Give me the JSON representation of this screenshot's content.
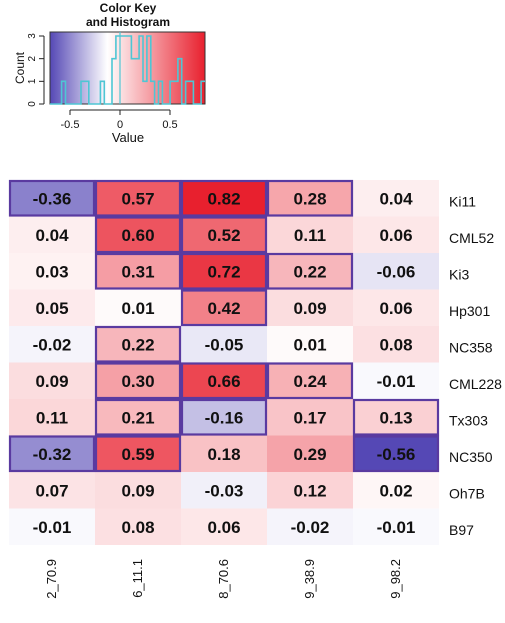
{
  "chart_data": [
    {
      "type": "histogram",
      "title": "Color Key\nand Histogram",
      "title_lines": [
        "Color Key",
        "and Histogram"
      ],
      "xlabel": "Value",
      "ylabel": "Count",
      "xticks": [
        "-0.5",
        "0",
        "0.5"
      ],
      "yticks": [
        "0",
        "1",
        "2",
        "3"
      ],
      "xlim": [
        -0.7,
        0.85
      ],
      "ylim": [
        0,
        3
      ],
      "palette": {
        "low": "#5548b5",
        "mid": "#ffffff",
        "high": "#e8202e"
      }
    },
    {
      "type": "heatmap",
      "rows": [
        "Ki11",
        "CML52",
        "Ki3",
        "Hp301",
        "NC358",
        "CML228",
        "Tx303",
        "NC350",
        "Oh7B",
        "B97"
      ],
      "columns": [
        "2_70.9",
        "6_11.1",
        "8_70.6",
        "9_38.9",
        "9_98.2"
      ],
      "labels": [
        [
          "-0.36",
          "0.57",
          "0.82",
          "0.28",
          "0.04"
        ],
        [
          "0.04",
          "0.60",
          "0.52",
          "0.11",
          "0.06"
        ],
        [
          "0.03",
          "0.31",
          "0.72",
          "0.22",
          "-0.06"
        ],
        [
          "0.05",
          "0.01",
          "0.42",
          "0.09",
          "0.06"
        ],
        [
          "-0.02",
          "0.22",
          "-0.05",
          "0.01",
          "0.08"
        ],
        [
          "0.09",
          "0.30",
          "0.66",
          "0.24",
          "-0.01"
        ],
        [
          "0.11",
          "0.21",
          "-0.16",
          "0.17",
          "0.13"
        ],
        [
          "-0.32",
          "0.59",
          "0.18",
          "0.29",
          "-0.56"
        ],
        [
          "0.07",
          "0.09",
          "-0.03",
          "0.12",
          "0.02"
        ],
        [
          "-0.01",
          "0.08",
          "0.06",
          "-0.02",
          "-0.01"
        ]
      ],
      "highlighted": [
        [
          true,
          true,
          true,
          true,
          false
        ],
        [
          false,
          true,
          true,
          false,
          false
        ],
        [
          false,
          true,
          true,
          true,
          false
        ],
        [
          false,
          false,
          true,
          false,
          false
        ],
        [
          false,
          true,
          false,
          false,
          false
        ],
        [
          false,
          true,
          true,
          true,
          false
        ],
        [
          false,
          true,
          true,
          false,
          true
        ],
        [
          true,
          true,
          false,
          false,
          true
        ],
        [
          false,
          false,
          false,
          false,
          false
        ],
        [
          false,
          false,
          false,
          false,
          false
        ]
      ],
      "highlight_color": "#5a3aa0"
    }
  ]
}
